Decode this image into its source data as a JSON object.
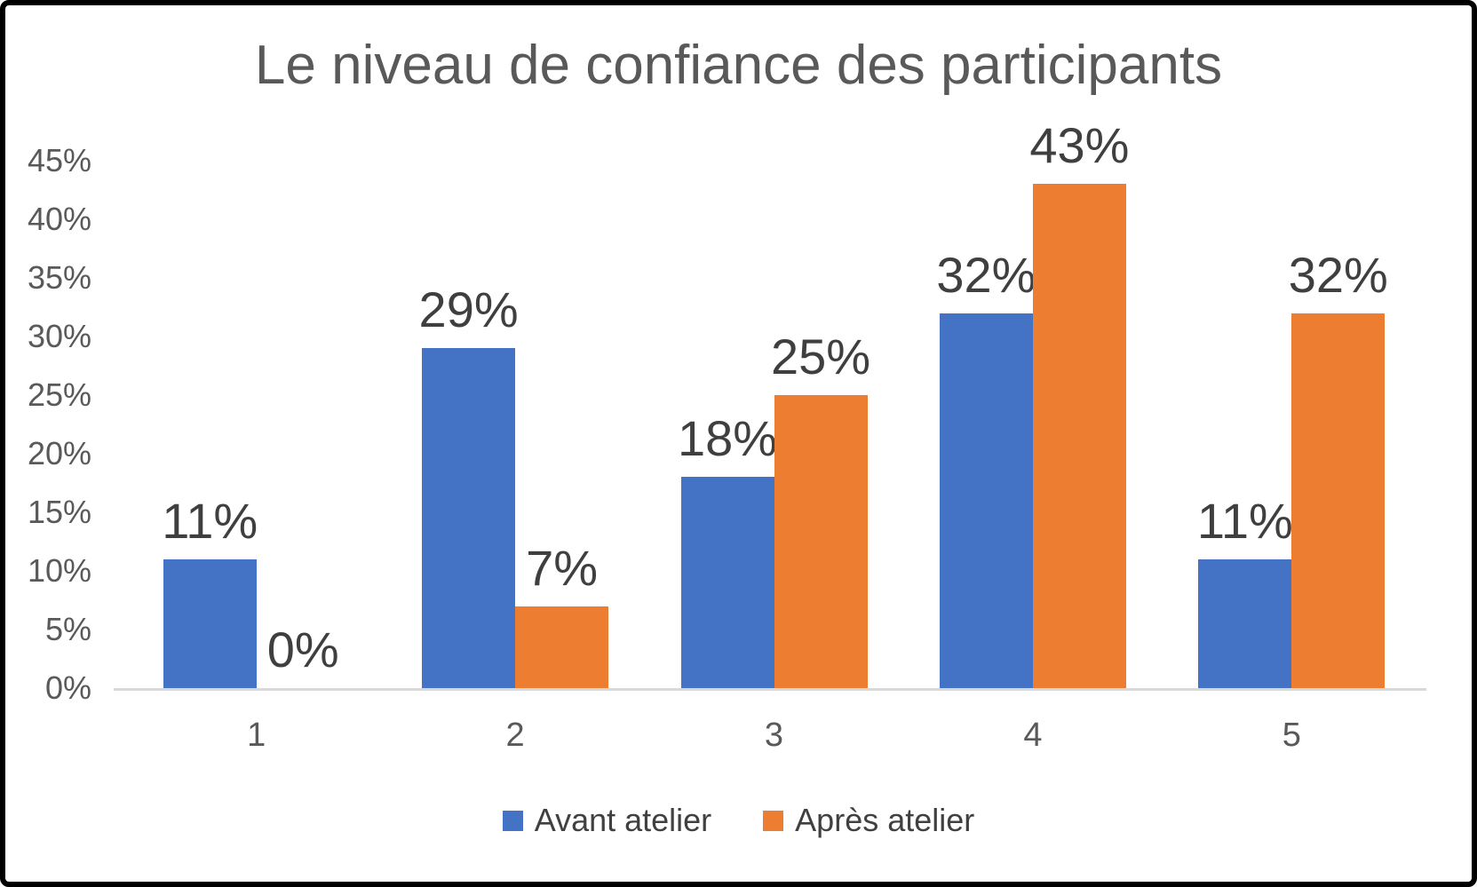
{
  "chart_data": {
    "type": "bar",
    "title": "Le niveau de confiance des participants",
    "categories": [
      "1",
      "2",
      "3",
      "4",
      "5"
    ],
    "series": [
      {
        "name": "Avant atelier",
        "color": "#4472C4",
        "values": [
          11,
          29,
          18,
          32,
          11
        ],
        "data_labels": [
          "11%",
          "29%",
          "18%",
          "32%",
          "11%"
        ]
      },
      {
        "name": "Après atelier",
        "color": "#ED7D31",
        "values": [
          0,
          7,
          25,
          43,
          32
        ],
        "data_labels": [
          "0%",
          "7%",
          "25%",
          "43%",
          "32%"
        ]
      }
    ],
    "y_axis": {
      "min": 0,
      "max": 45,
      "tick_step": 5,
      "tick_labels": [
        "0%",
        "5%",
        "10%",
        "15%",
        "20%",
        "25%",
        "30%",
        "35%",
        "40%",
        "45%"
      ]
    },
    "xlabel": "",
    "ylabel": "",
    "grid": false,
    "data_labels_shown": true,
    "legend_position": "bottom",
    "colors": {
      "axis_line": "#D9D9D9",
      "title_text": "#595959",
      "tick_text": "#595959",
      "data_label_text": "#3F3F3F",
      "frame_border": "#000000"
    }
  }
}
